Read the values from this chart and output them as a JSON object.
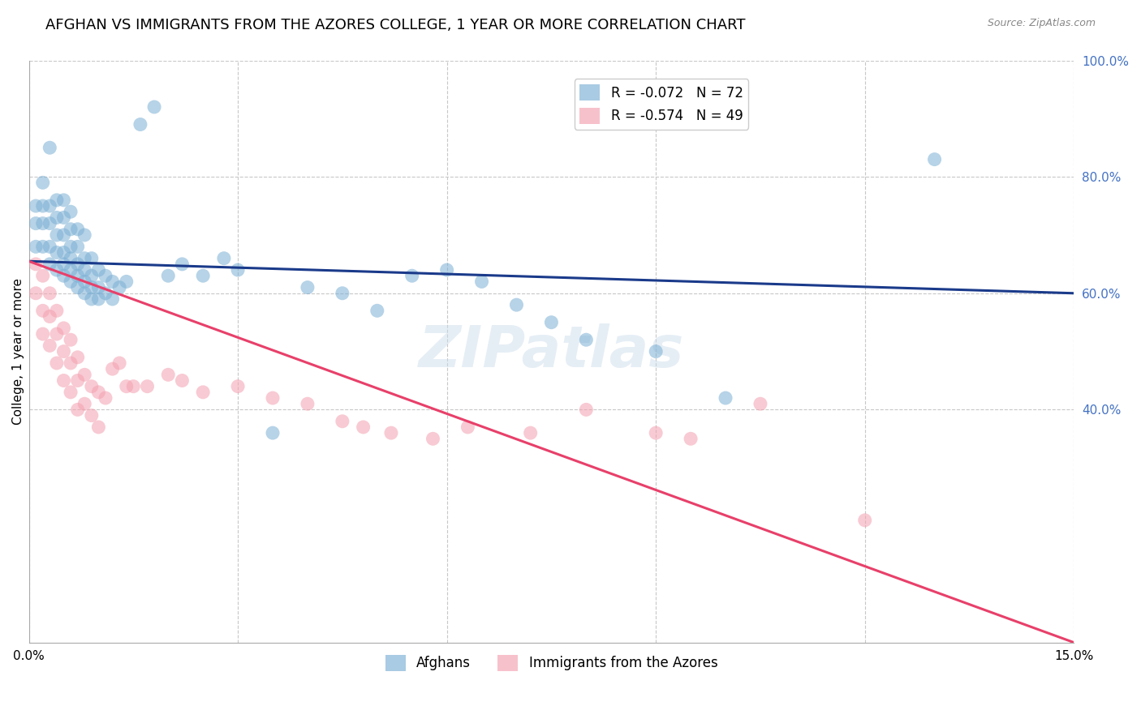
{
  "title": "AFGHAN VS IMMIGRANTS FROM THE AZORES COLLEGE, 1 YEAR OR MORE CORRELATION CHART",
  "source": "Source: ZipAtlas.com",
  "ylabel": "College, 1 year or more",
  "xlim": [
    0.0,
    0.15
  ],
  "ylim": [
    0.0,
    1.0
  ],
  "xticks": [
    0.0,
    0.03,
    0.06,
    0.09,
    0.12,
    0.15
  ],
  "xtick_labels": [
    "0.0%",
    "",
    "",
    "",
    "",
    "15.0%"
  ],
  "ytick_positions_right": [
    1.0,
    0.8,
    0.6,
    0.4
  ],
  "grid_color": "#c8c8c8",
  "background_color": "#ffffff",
  "blue_color": "#7bafd4",
  "pink_color": "#f4a0b0",
  "blue_line_color": "#1a3a8a",
  "pink_line_color": "#e8406a",
  "legend_R_blue": "-0.072",
  "legend_N_blue": "72",
  "legend_R_pink": "-0.574",
  "legend_N_pink": "49",
  "legend_label_blue": "Afghans",
  "legend_label_pink": "Immigrants from the Azores",
  "watermark": "ZIPatlas",
  "title_fontsize": 13,
  "axis_label_fontsize": 11,
  "tick_fontsize": 11,
  "legend_fontsize": 12,
  "blue_line_x0": 0.0,
  "blue_line_y0": 0.655,
  "blue_line_x1": 0.15,
  "blue_line_y1": 0.6,
  "pink_line_x0": 0.0,
  "pink_line_y0": 0.655,
  "pink_line_x1": 0.15,
  "pink_line_y1": 0.0,
  "blue_points_x": [
    0.001,
    0.001,
    0.001,
    0.002,
    0.002,
    0.002,
    0.002,
    0.003,
    0.003,
    0.003,
    0.003,
    0.003,
    0.004,
    0.004,
    0.004,
    0.004,
    0.004,
    0.005,
    0.005,
    0.005,
    0.005,
    0.005,
    0.005,
    0.006,
    0.006,
    0.006,
    0.006,
    0.006,
    0.006,
    0.007,
    0.007,
    0.007,
    0.007,
    0.007,
    0.008,
    0.008,
    0.008,
    0.008,
    0.008,
    0.009,
    0.009,
    0.009,
    0.009,
    0.01,
    0.01,
    0.01,
    0.011,
    0.011,
    0.012,
    0.012,
    0.013,
    0.014,
    0.016,
    0.018,
    0.02,
    0.022,
    0.025,
    0.028,
    0.03,
    0.035,
    0.04,
    0.045,
    0.05,
    0.055,
    0.06,
    0.065,
    0.07,
    0.075,
    0.08,
    0.09,
    0.1,
    0.13
  ],
  "blue_points_y": [
    0.68,
    0.72,
    0.75,
    0.68,
    0.72,
    0.75,
    0.79,
    0.65,
    0.68,
    0.72,
    0.75,
    0.85,
    0.64,
    0.67,
    0.7,
    0.73,
    0.76,
    0.63,
    0.65,
    0.67,
    0.7,
    0.73,
    0.76,
    0.62,
    0.64,
    0.66,
    0.68,
    0.71,
    0.74,
    0.61,
    0.63,
    0.65,
    0.68,
    0.71,
    0.6,
    0.62,
    0.64,
    0.66,
    0.7,
    0.59,
    0.61,
    0.63,
    0.66,
    0.59,
    0.61,
    0.64,
    0.6,
    0.63,
    0.59,
    0.62,
    0.61,
    0.62,
    0.89,
    0.92,
    0.63,
    0.65,
    0.63,
    0.66,
    0.64,
    0.36,
    0.61,
    0.6,
    0.57,
    0.63,
    0.64,
    0.62,
    0.58,
    0.55,
    0.52,
    0.5,
    0.42,
    0.83
  ],
  "pink_points_x": [
    0.001,
    0.001,
    0.002,
    0.002,
    0.002,
    0.003,
    0.003,
    0.003,
    0.004,
    0.004,
    0.004,
    0.005,
    0.005,
    0.005,
    0.006,
    0.006,
    0.006,
    0.007,
    0.007,
    0.007,
    0.008,
    0.008,
    0.009,
    0.009,
    0.01,
    0.01,
    0.011,
    0.012,
    0.013,
    0.014,
    0.015,
    0.017,
    0.02,
    0.022,
    0.025,
    0.03,
    0.035,
    0.04,
    0.045,
    0.048,
    0.052,
    0.058,
    0.063,
    0.072,
    0.08,
    0.09,
    0.095,
    0.105,
    0.12
  ],
  "pink_points_y": [
    0.65,
    0.6,
    0.63,
    0.57,
    0.53,
    0.6,
    0.56,
    0.51,
    0.57,
    0.53,
    0.48,
    0.54,
    0.5,
    0.45,
    0.52,
    0.48,
    0.43,
    0.49,
    0.45,
    0.4,
    0.46,
    0.41,
    0.44,
    0.39,
    0.43,
    0.37,
    0.42,
    0.47,
    0.48,
    0.44,
    0.44,
    0.44,
    0.46,
    0.45,
    0.43,
    0.44,
    0.42,
    0.41,
    0.38,
    0.37,
    0.36,
    0.35,
    0.37,
    0.36,
    0.4,
    0.36,
    0.35,
    0.41,
    0.21
  ]
}
